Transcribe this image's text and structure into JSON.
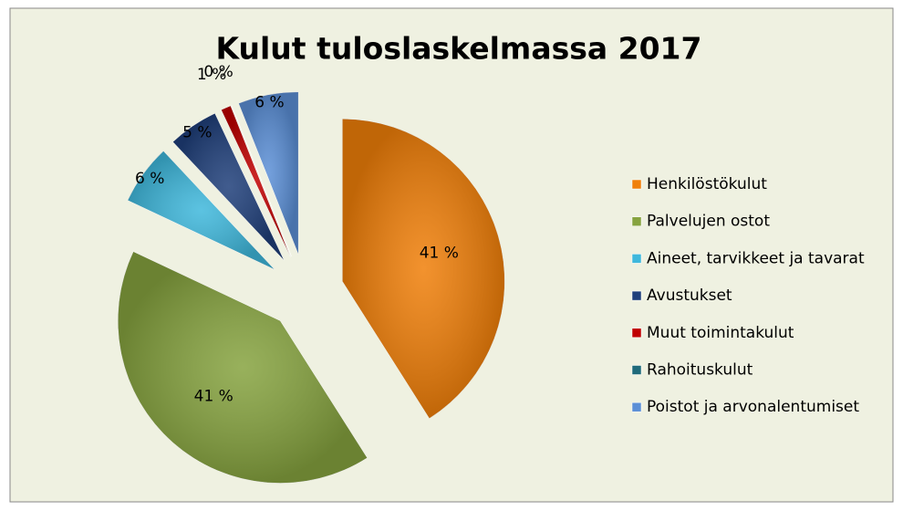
{
  "chart_data": {
    "type": "pie",
    "title": "Kulut tuloslaskelmassa 2017",
    "categories": [
      "Henkilöstökulut",
      "Palvelujen ostot",
      "Aineet, tarvikkeet ja tavarat",
      "Avustukset",
      "Muut toimintakulut",
      "Rahoituskulut",
      "Poistot ja arvonalentumiset"
    ],
    "values": [
      41,
      41,
      6,
      5,
      1,
      0,
      6
    ],
    "value_labels": [
      "41 %",
      "41 %",
      "6 %",
      "5 %",
      "1 %",
      "0 %",
      "6 %"
    ],
    "colors": [
      "#f07f09",
      "#86a33f",
      "#3fb8dc",
      "#1f3f7a",
      "#c00000",
      "#1f6a7a",
      "#5b8fd6"
    ],
    "legend": "right"
  }
}
